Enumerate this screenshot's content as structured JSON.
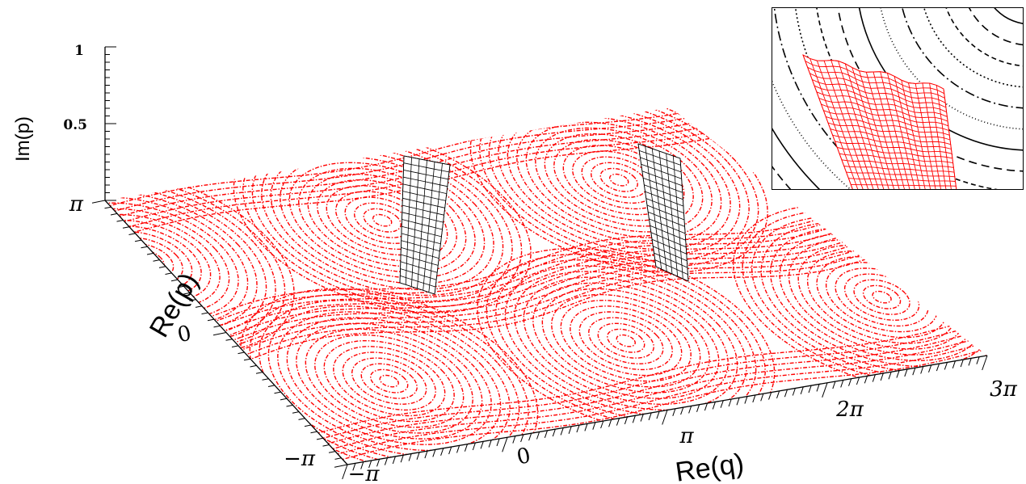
{
  "axes": {
    "x_label": "Re(q)",
    "y_label": "Re(p)",
    "z_label": "Im(p)",
    "x_ticks": [
      "−π",
      "0",
      "π",
      "2π",
      "3π"
    ],
    "y_ticks": [
      "−π",
      "0",
      "π"
    ],
    "z_ticks": [
      "0.5",
      "1"
    ]
  },
  "colors": {
    "phase_curves": "#ff0000",
    "surface_main": "#000000",
    "surface_inset": "#ff0000",
    "inset_contours": "#000000"
  }
}
